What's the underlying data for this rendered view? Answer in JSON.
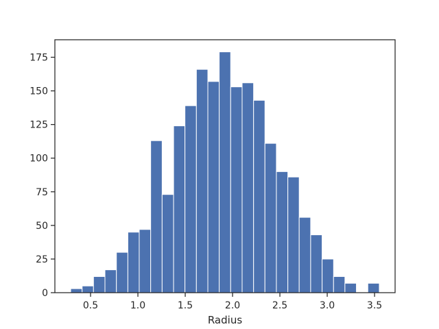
{
  "chart_data": {
    "type": "histogram",
    "xlabel": "Radius",
    "bins": [
      0.29,
      0.411,
      0.531,
      0.652,
      0.773,
      0.894,
      1.014,
      1.135,
      1.256,
      1.377,
      1.497,
      1.618,
      1.739,
      1.859,
      1.98,
      2.101,
      2.222,
      2.342,
      2.463,
      2.584,
      2.704,
      2.825,
      2.946,
      3.067,
      3.187,
      3.308,
      3.429,
      3.55
    ],
    "values": [
      3,
      5,
      12,
      17,
      30,
      45,
      47,
      113,
      73,
      124,
      139,
      166,
      157,
      179,
      153,
      156,
      143,
      111,
      90,
      86,
      56,
      43,
      25,
      12,
      7,
      0,
      7
    ],
    "color": "#4c72b0",
    "xlim": [
      0.123,
      3.717
    ],
    "xticks": [
      0.5,
      {
        "value": 1,
        "label": "1.0"
      },
      1.5,
      {
        "value": 2,
        "label": "2.0"
      },
      2.5,
      {
        "value": 3,
        "label": "3.0"
      },
      3.5
    ],
    "ylim": [
      0,
      188
    ],
    "yticks": [
      0,
      25,
      50,
      75,
      100,
      125,
      150,
      175
    ]
  }
}
